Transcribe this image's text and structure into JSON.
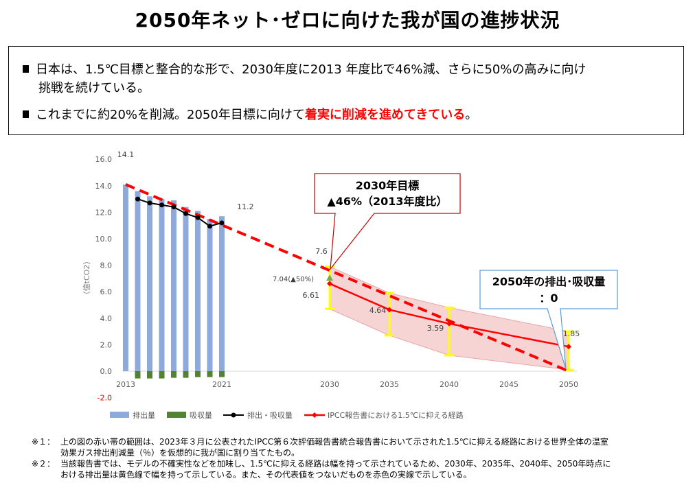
{
  "title": "2050年ネット･ゼロに向けた我が国の進捗状況",
  "summary": {
    "bullet1_line1": "日本は、1.5℃目標と整合的な形で、2030年度に2013 年度比で46%減、さらに50%の高みに向け",
    "bullet1_line2": "挑戦を続けている。",
    "bullet2_plain": "これまでに約20%を削減。2050年目標に向けて",
    "bullet2_highlight": "着実に削減を進めてきている",
    "bullet2_end": "。"
  },
  "callouts": {
    "target2030_line1": "2030年目標",
    "target2030_line2": "▲46%（2013年度比）",
    "zero2050_line1": "2050年の排出･吸収量",
    "zero2050_line2": "：0"
  },
  "chart_data": {
    "type": "bar",
    "ylabel": "（億tCO2）",
    "ylim": [
      -2,
      16
    ],
    "y_ticks": [
      "16.0",
      "14.0",
      "12.0",
      "10.0",
      "8.0",
      "6.0",
      "4.0",
      "2.0",
      "0.0",
      "-2.0"
    ],
    "x_ticks": [
      "2013",
      "2021",
      "2030",
      "2035",
      "2040",
      "2045",
      "2050"
    ],
    "series": [
      {
        "name": "排出量",
        "x": [
          2013,
          2014,
          2015,
          2016,
          2017,
          2018,
          2019,
          2020,
          2021
        ],
        "values": [
          14.1,
          13.6,
          13.2,
          13.0,
          12.9,
          12.4,
          12.1,
          11.5,
          11.7
        ]
      },
      {
        "name": "吸収量",
        "x": [
          2014,
          2015,
          2016,
          2017,
          2018,
          2019,
          2020,
          2021
        ],
        "values": [
          -0.55,
          -0.55,
          -0.55,
          -0.5,
          -0.5,
          -0.45,
          -0.45,
          -0.45
        ]
      },
      {
        "name": "排出・吸収量",
        "x": [
          2014,
          2015,
          2016,
          2017,
          2018,
          2019,
          2020,
          2021
        ],
        "values": [
          13.0,
          12.7,
          12.55,
          12.4,
          11.9,
          11.6,
          10.95,
          11.2
        ]
      },
      {
        "name": "IPCC報告書における1.5℃に抑える経路",
        "x": [
          2030,
          2035,
          2040,
          2050
        ],
        "values": [
          6.61,
          4.64,
          3.59,
          1.85
        ]
      }
    ],
    "target_path": {
      "x": [
        2013,
        2050
      ],
      "values": [
        14.1,
        0.0
      ]
    },
    "ipcc_ranges": [
      {
        "x": 2030,
        "low": 4.7,
        "high": 7.9
      },
      {
        "x": 2035,
        "low": 2.7,
        "high": 5.9
      },
      {
        "x": 2040,
        "low": 1.2,
        "high": 4.8
      },
      {
        "x": 2050,
        "low": 0.1,
        "high": 3.0
      }
    ],
    "data_labels": [
      {
        "text": "14.1",
        "x": 2013,
        "y": 14.1
      },
      {
        "text": "11.2",
        "x": 2021,
        "y": 11.2
      },
      {
        "text": "7.6",
        "x": 2030,
        "y": 7.6
      },
      {
        "text": "7.04(▲50%)",
        "x": 2030,
        "y": 7.04
      },
      {
        "text": "6.61",
        "x": 2030,
        "y": 6.61
      },
      {
        "text": "4.64",
        "x": 2035,
        "y": 4.64
      },
      {
        "text": "3.59",
        "x": 2040,
        "y": 3.59
      },
      {
        "text": "1.85",
        "x": 2050,
        "y": 1.85
      }
    ],
    "legend_position": "bottom",
    "colors": {
      "emission": "#8eaadb",
      "absorption": "#548235",
      "net": "#000000",
      "ipcc": "#ff0000",
      "band": "#f4cccc",
      "range": "#ffff00",
      "target": "#ff0000"
    }
  },
  "notes": [
    {
      "label": "※１：",
      "line1": "上の図の赤い帯の範囲は、2023年３月に公表されたIPCC第６次評価報告書統合報告書において示された1.5℃に抑える経路における世界全体の温室",
      "line2": "効果ガス排出削減量（％）を仮想的に我が国に割り当てたもの。"
    },
    {
      "label": "※２：",
      "line1": "当該報告書では、モデルの不確実性などを加味し、1.5℃に抑える経路は幅を持って示されているため、2030年、2035年、2040年、2050年時点に",
      "line2": "おける排出量は黄色線で幅を持って示している。また、その代表値をつないだものを赤色の実線で示している。"
    }
  ]
}
